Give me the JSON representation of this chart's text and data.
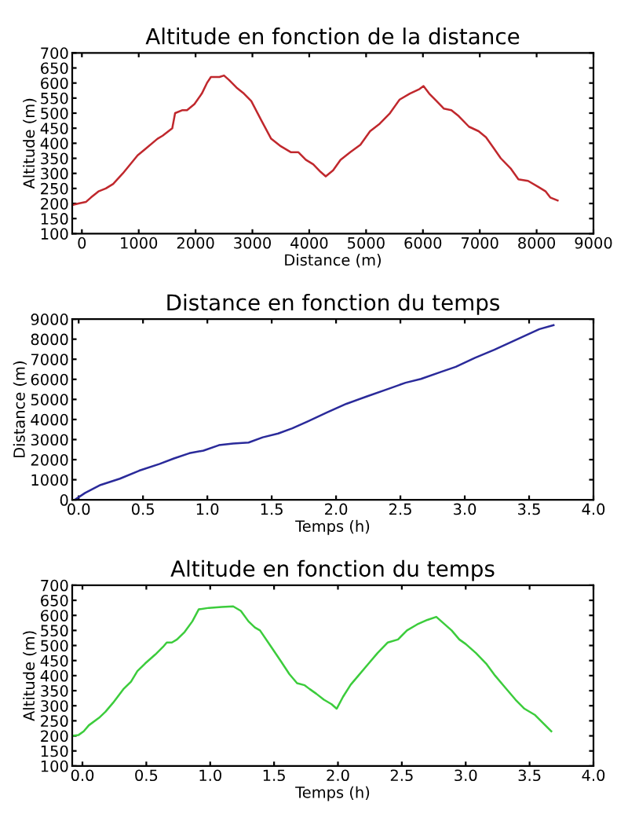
{
  "chart_data": [
    {
      "type": "line",
      "title": "Altitude en fonction de la distance",
      "xlabel": "Distance (m)",
      "ylabel": "Altitude (m)",
      "xlim": [
        -170,
        9000
      ],
      "xticks": [
        0,
        1000,
        2000,
        3000,
        4000,
        5000,
        6000,
        7000,
        8000,
        9000
      ],
      "ylim": [
        100,
        700
      ],
      "yticks": [
        100,
        150,
        200,
        250,
        300,
        350,
        400,
        450,
        500,
        550,
        600,
        650,
        700
      ],
      "grid": false,
      "legend": false,
      "line_style": "solid",
      "series": [
        {
          "color": "#c0282d",
          "x": [
            -170,
            -60,
            70,
            160,
            290,
            420,
            550,
            720,
            980,
            1110,
            1330,
            1420,
            1590,
            1640,
            1770,
            1850,
            1980,
            2110,
            2200,
            2270,
            2420,
            2500,
            2590,
            2720,
            2850,
            2980,
            3160,
            3330,
            3500,
            3680,
            3810,
            3940,
            4070,
            4200,
            4290,
            4420,
            4550,
            4720,
            4900,
            5070,
            5240,
            5420,
            5590,
            5770,
            5940,
            6010,
            6110,
            6240,
            6370,
            6500,
            6630,
            6810,
            6980,
            7110,
            7240,
            7370,
            7550,
            7680,
            7850,
            8030,
            8160,
            8240,
            8370
          ],
          "values": [
            195,
            200,
            205,
            220,
            240,
            250,
            265,
            300,
            360,
            380,
            415,
            425,
            450,
            500,
            510,
            510,
            530,
            565,
            600,
            620,
            620,
            625,
            610,
            585,
            565,
            540,
            475,
            415,
            390,
            370,
            370,
            345,
            330,
            305,
            290,
            310,
            345,
            370,
            395,
            440,
            465,
            500,
            545,
            565,
            580,
            590,
            565,
            540,
            515,
            510,
            490,
            455,
            440,
            420,
            385,
            350,
            315,
            280,
            275,
            255,
            240,
            220,
            210
          ]
        }
      ]
    },
    {
      "type": "line",
      "title": "Distance en fonction du temps",
      "xlabel": "Temps (h)",
      "ylabel": "Distance (m)",
      "xlim": [
        -0.05,
        4.0
      ],
      "xticks": [
        {
          "value": 0,
          "label": "0.0"
        },
        0.5,
        {
          "value": 1,
          "label": "1.0"
        },
        1.5,
        {
          "value": 2,
          "label": "2.0"
        },
        2.5,
        {
          "value": 3,
          "label": "3.0"
        },
        3.5,
        {
          "value": 4,
          "label": "4.0"
        }
      ],
      "ylim": [
        0,
        9000
      ],
      "yticks": [
        0,
        1000,
        2000,
        3000,
        4000,
        5000,
        6000,
        7000,
        8000,
        9000
      ],
      "grid": false,
      "legend": false,
      "line_style": "solid",
      "series": [
        {
          "color": "#2a2a9a",
          "x": [
            -0.03,
            0.05,
            0.17,
            0.32,
            0.47,
            0.63,
            0.74,
            0.86,
            0.97,
            1.09,
            1.2,
            1.32,
            1.43,
            1.55,
            1.66,
            1.78,
            1.93,
            2.08,
            2.24,
            2.39,
            2.54,
            2.66,
            2.81,
            2.93,
            3.08,
            3.23,
            3.39,
            3.58,
            3.69
          ],
          "values": [
            0,
            340,
            740,
            1050,
            1450,
            1790,
            2060,
            2320,
            2450,
            2720,
            2800,
            2850,
            3110,
            3300,
            3560,
            3900,
            4350,
            4780,
            5150,
            5490,
            5830,
            6020,
            6360,
            6620,
            7070,
            7470,
            7940,
            8500,
            8700
          ]
        }
      ]
    },
    {
      "type": "line",
      "title": "Altitude en fonction du temps",
      "xlabel": "Temps (h)",
      "ylabel": "Altitude (m)",
      "xlim": [
        -0.08,
        4.0
      ],
      "xticks": [
        {
          "value": 0,
          "label": "0.0"
        },
        0.5,
        {
          "value": 1,
          "label": "1.0"
        },
        1.5,
        {
          "value": 2,
          "label": "2.0"
        },
        2.5,
        {
          "value": 3,
          "label": "3.0"
        },
        3.5,
        {
          "value": 4,
          "label": "4.0"
        }
      ],
      "ylim": [
        100,
        700
      ],
      "yticks": [
        100,
        150,
        200,
        250,
        300,
        350,
        400,
        450,
        500,
        550,
        600,
        650,
        700
      ],
      "grid": false,
      "legend": false,
      "line_style": "solid",
      "series": [
        {
          "color": "#3ccc3c",
          "x": [
            -0.08,
            -0.03,
            0.01,
            0.05,
            0.13,
            0.18,
            0.24,
            0.32,
            0.38,
            0.43,
            0.49,
            0.57,
            0.63,
            0.66,
            0.7,
            0.74,
            0.8,
            0.86,
            0.91,
            0.99,
            1.09,
            1.18,
            1.24,
            1.3,
            1.35,
            1.39,
            1.47,
            1.55,
            1.62,
            1.68,
            1.74,
            1.78,
            1.83,
            1.89,
            1.95,
            1.99,
            2.04,
            2.1,
            2.16,
            2.24,
            2.31,
            2.39,
            2.47,
            2.54,
            2.62,
            2.7,
            2.77,
            2.81,
            2.89,
            2.95,
            3.0,
            3.08,
            3.16,
            3.23,
            3.31,
            3.39,
            3.46,
            3.54,
            3.6,
            3.67
          ],
          "values": [
            200,
            203,
            215,
            235,
            260,
            280,
            310,
            355,
            380,
            415,
            440,
            470,
            495,
            510,
            510,
            520,
            545,
            580,
            620,
            625,
            628,
            630,
            615,
            580,
            560,
            550,
            500,
            450,
            405,
            375,
            368,
            355,
            340,
            320,
            305,
            290,
            330,
            370,
            400,
            440,
            475,
            510,
            520,
            550,
            570,
            585,
            595,
            580,
            550,
            520,
            505,
            475,
            440,
            400,
            360,
            320,
            290,
            270,
            245,
            215
          ]
        }
      ]
    }
  ]
}
